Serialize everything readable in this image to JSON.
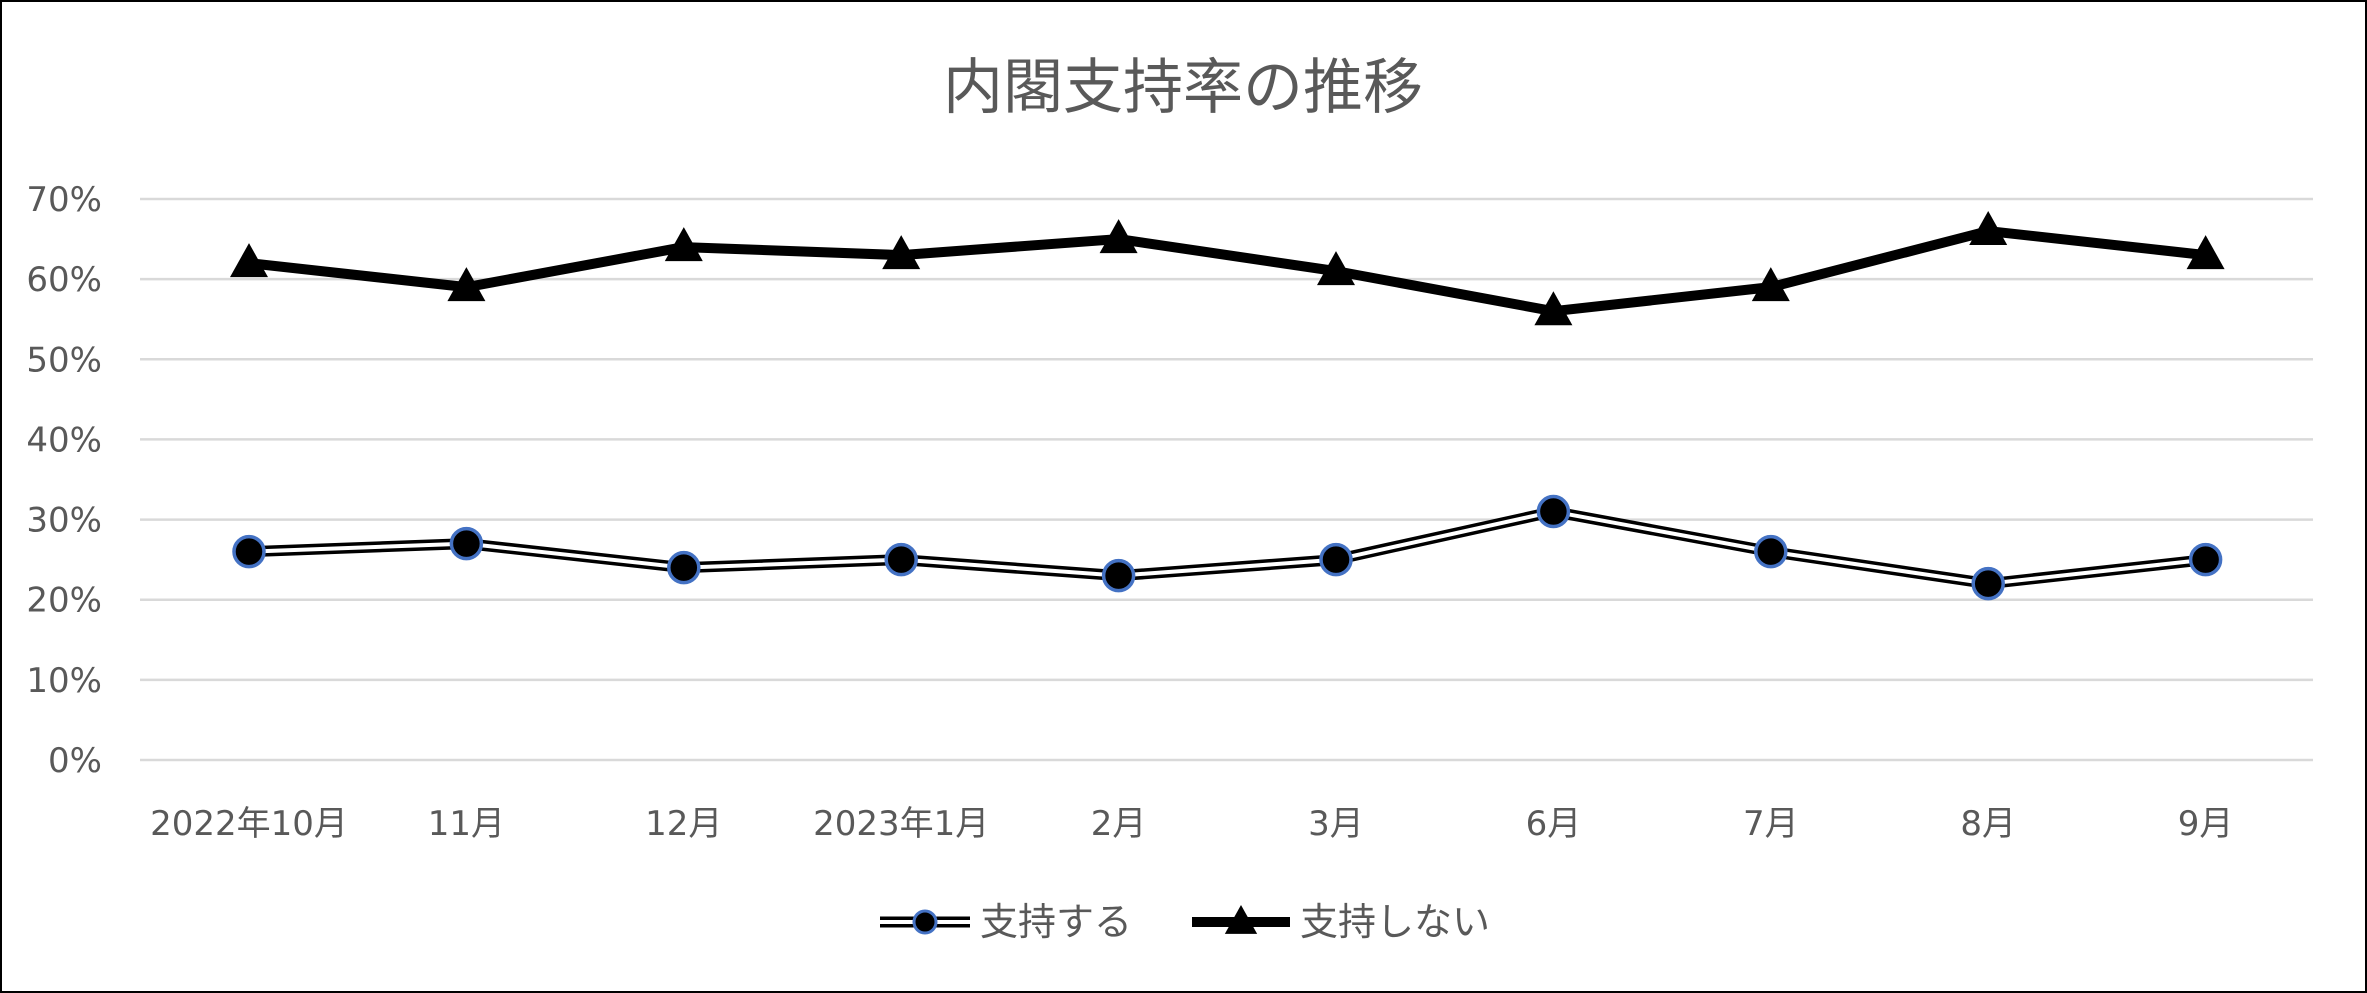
{
  "chart_data": {
    "type": "line",
    "title": "内閣支持率の推移",
    "xlabel": "",
    "ylabel": "",
    "categories": [
      "2022年10月",
      "11月",
      "12月",
      "2023年1月",
      "2月",
      "3月",
      "6月",
      "7月",
      "8月",
      "9月"
    ],
    "y_ticks": [
      "0%",
      "10%",
      "20%",
      "30%",
      "40%",
      "50%",
      "60%",
      "70%"
    ],
    "ylim": [
      0,
      70
    ],
    "grid": true,
    "legend_position": "bottom",
    "series": [
      {
        "name": "支持する",
        "values": [
          26,
          27,
          24,
          25,
          23,
          25,
          31,
          26,
          22,
          25
        ],
        "marker": "circle",
        "line_style": "double-outline",
        "color": "#000000",
        "marker_edge_color": "#4472C4"
      },
      {
        "name": "支持しない",
        "values": [
          62,
          59,
          64,
          63,
          65,
          61,
          56,
          59,
          66,
          63
        ],
        "marker": "triangle",
        "line_style": "solid-thick",
        "color": "#000000"
      }
    ],
    "colors": {
      "grid": "#D9D9D9",
      "text": "#595959",
      "border": "#000000"
    }
  }
}
